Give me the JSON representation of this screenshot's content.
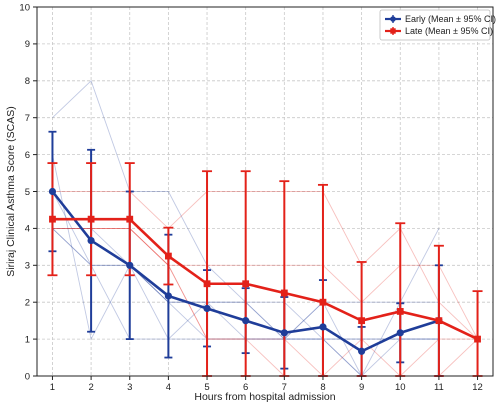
{
  "chart_data": {
    "type": "line",
    "xlabel": "Hours from hospital admission",
    "ylabel": "Siriraj Clinical Asthma Score (SCAS)",
    "xlim": [
      0.6,
      12.4
    ],
    "ylim": [
      0,
      10
    ],
    "x": [
      1,
      2,
      3,
      4,
      5,
      6,
      7,
      8,
      9,
      10,
      11,
      12
    ],
    "yticks": [
      0,
      1,
      2,
      3,
      4,
      5,
      6,
      7,
      8,
      9,
      10
    ],
    "grid": true,
    "legend_position": "top-right",
    "series": [
      {
        "name": "Early (Mean ± 95% CI)",
        "color": "#1f3d99",
        "mean": [
          5.0,
          3.67,
          3.0,
          2.17,
          1.83,
          1.5,
          1.17,
          1.33,
          0.67,
          1.17,
          1.5,
          null
        ],
        "lower": [
          3.38,
          1.2,
          1.0,
          0.5,
          0.8,
          0.62,
          0.2,
          0.0,
          0.0,
          0.37,
          0.0,
          null
        ],
        "upper": [
          6.62,
          6.13,
          5.0,
          3.83,
          2.87,
          2.38,
          2.14,
          2.6,
          1.33,
          1.97,
          3.0,
          null
        ]
      },
      {
        "name": "Late (Mean ± 95% CI)",
        "color": "#e32119",
        "mean": [
          4.25,
          4.25,
          4.25,
          3.25,
          2.5,
          2.5,
          2.25,
          2.0,
          1.5,
          1.75,
          1.5,
          1.0
        ],
        "lower": [
          2.73,
          2.73,
          2.73,
          2.48,
          0.0,
          0.0,
          0.0,
          0.0,
          0.0,
          0.0,
          0.0,
          0.0
        ],
        "upper": [
          5.77,
          5.77,
          5.77,
          4.02,
          5.55,
          5.55,
          5.28,
          5.18,
          3.09,
          4.14,
          3.53,
          2.3
        ]
      }
    ],
    "individual_traces": [
      {
        "group": "early",
        "values": [
          7,
          8,
          5,
          5,
          3,
          2,
          2,
          1,
          1,
          1,
          1
        ]
      },
      {
        "group": "early",
        "values": [
          6,
          1,
          3,
          1,
          2,
          2,
          1,
          2,
          0,
          2,
          4
        ]
      },
      {
        "group": "early",
        "values": [
          5,
          3,
          1,
          1,
          1,
          1,
          1,
          1,
          1,
          1,
          1
        ]
      },
      {
        "group": "early",
        "values": [
          4,
          4,
          3,
          2,
          2,
          1,
          1,
          2,
          2,
          2,
          2
        ]
      },
      {
        "group": "early",
        "values": [
          4,
          3,
          3,
          2,
          2,
          2,
          1,
          1,
          0,
          1,
          1
        ]
      },
      {
        "group": "early",
        "values": [
          4,
          3,
          3,
          2,
          1,
          1,
          1,
          1,
          0,
          0,
          0
        ]
      },
      {
        "group": "late",
        "values": [
          5,
          5,
          5,
          4,
          5,
          5,
          5,
          5,
          3,
          4,
          2,
          1
        ]
      },
      {
        "group": "late",
        "values": [
          4,
          4,
          4,
          3,
          3,
          3,
          3,
          3,
          2,
          3,
          3,
          1
        ]
      },
      {
        "group": "late",
        "values": [
          4,
          4,
          4,
          3,
          1,
          1,
          1,
          0,
          1,
          0,
          1,
          1
        ]
      },
      {
        "group": "late",
        "values": [
          4,
          4,
          4,
          3,
          1,
          1,
          0,
          0,
          0,
          0,
          0,
          1
        ]
      }
    ]
  }
}
